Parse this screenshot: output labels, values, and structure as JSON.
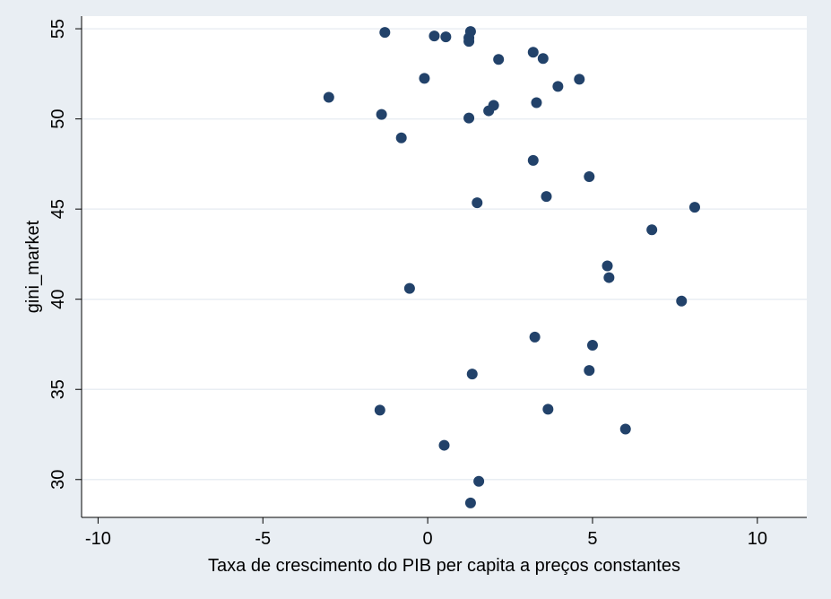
{
  "chart_data": {
    "type": "scatter",
    "xlabel": "Taxa de crescimento do PIB per capita a preços constantes",
    "ylabel": "gini_market",
    "xlim": [
      -10.5,
      11.5
    ],
    "ylim": [
      27.9,
      55.7
    ],
    "x_ticks": [
      -10,
      -5,
      0,
      5,
      10
    ],
    "x_tick_labels": [
      "-10",
      "-5",
      "0",
      "5",
      "10"
    ],
    "y_ticks": [
      30,
      35,
      40,
      45,
      50,
      55
    ],
    "y_tick_labels": [
      "30",
      "35",
      "40",
      "45",
      "50",
      "55"
    ],
    "grid": true,
    "colors": {
      "outer_background": "#e9eef3",
      "plot_background": "#ffffff",
      "gridline": "#e9eef3",
      "marker": "#22426a",
      "axis": "#000000"
    },
    "points": [
      {
        "x": -1.3,
        "y": 54.8
      },
      {
        "x": 0.2,
        "y": 54.6
      },
      {
        "x": 0.55,
        "y": 54.55
      },
      {
        "x": 1.25,
        "y": 54.5
      },
      {
        "x": 1.3,
        "y": 54.85
      },
      {
        "x": 1.25,
        "y": 54.3
      },
      {
        "x": 3.2,
        "y": 53.7
      },
      {
        "x": 2.15,
        "y": 53.3
      },
      {
        "x": 3.5,
        "y": 53.35
      },
      {
        "x": -0.1,
        "y": 52.25
      },
      {
        "x": 4.6,
        "y": 52.2
      },
      {
        "x": 3.95,
        "y": 51.8
      },
      {
        "x": -3.0,
        "y": 51.2
      },
      {
        "x": 3.3,
        "y": 50.9
      },
      {
        "x": 2.0,
        "y": 50.75
      },
      {
        "x": 1.85,
        "y": 50.45
      },
      {
        "x": -1.4,
        "y": 50.25
      },
      {
        "x": 1.25,
        "y": 50.05
      },
      {
        "x": -0.8,
        "y": 48.95
      },
      {
        "x": 3.2,
        "y": 47.7
      },
      {
        "x": 4.9,
        "y": 46.8
      },
      {
        "x": 3.6,
        "y": 45.7
      },
      {
        "x": 1.5,
        "y": 45.35
      },
      {
        "x": 8.1,
        "y": 45.1
      },
      {
        "x": 6.8,
        "y": 43.85
      },
      {
        "x": 5.45,
        "y": 41.85
      },
      {
        "x": 5.5,
        "y": 41.2
      },
      {
        "x": -0.55,
        "y": 40.6
      },
      {
        "x": 7.7,
        "y": 39.9
      },
      {
        "x": 3.25,
        "y": 37.9
      },
      {
        "x": 5.0,
        "y": 37.45
      },
      {
        "x": 4.9,
        "y": 36.05
      },
      {
        "x": 1.35,
        "y": 35.85
      },
      {
        "x": -1.45,
        "y": 33.85
      },
      {
        "x": 3.65,
        "y": 33.9
      },
      {
        "x": 6.0,
        "y": 32.8
      },
      {
        "x": 0.5,
        "y": 31.9
      },
      {
        "x": 1.55,
        "y": 29.9
      },
      {
        "x": 1.3,
        "y": 28.7
      }
    ]
  }
}
